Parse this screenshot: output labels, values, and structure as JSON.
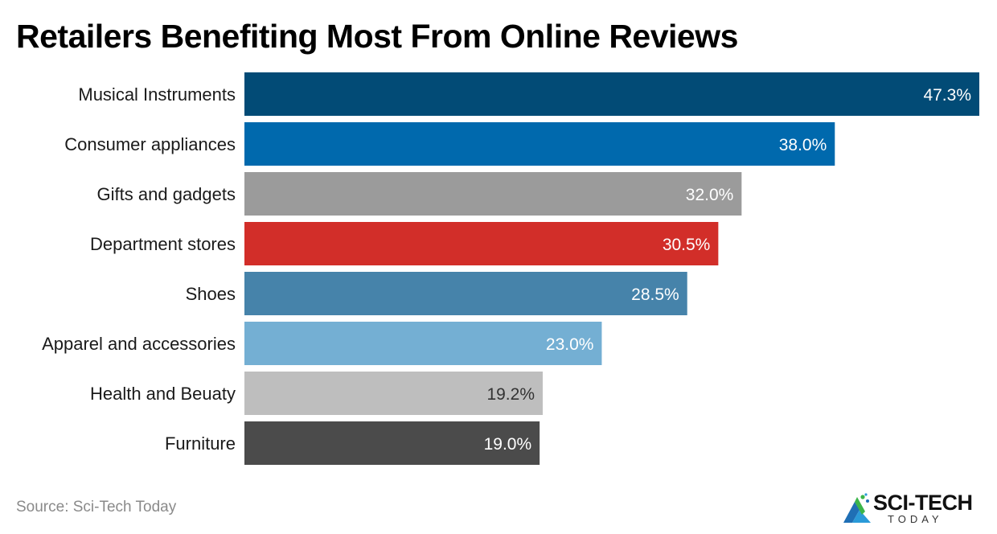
{
  "title": "Retailers Benefiting Most From Online Reviews",
  "source": "Source: Sci-Tech Today",
  "logo": {
    "name_top": "SCI-TECH",
    "name_bottom": "TODAY",
    "icon": "logo-mark-icon"
  },
  "chart_data": {
    "type": "bar",
    "orientation": "horizontal",
    "title": "Retailers Benefiting Most From Online Reviews",
    "xlabel": "",
    "ylabel": "",
    "xlim": [
      0,
      47.3
    ],
    "grid": false,
    "legend": "none",
    "categories": [
      "Musical Instruments",
      "Consumer appliances",
      "Gifts and gadgets",
      "Department stores",
      "Shoes",
      "Apparel and accessories",
      "Health and Beuaty",
      "Furniture"
    ],
    "values": [
      47.3,
      38.0,
      32.0,
      30.5,
      28.5,
      23.0,
      19.2,
      19.0
    ],
    "value_labels": [
      "47.3%",
      "38.0%",
      "32.0%",
      "30.5%",
      "28.5%",
      "23.0%",
      "19.2%",
      "19.0%"
    ],
    "colors": [
      "#024B76",
      "#0069AD",
      "#9B9B9B",
      "#D22E29",
      "#4683AA",
      "#74AFD3",
      "#BEBEBE",
      "#4B4B4B"
    ],
    "value_label_colors": [
      "#ffffff",
      "#ffffff",
      "#ffffff",
      "#ffffff",
      "#ffffff",
      "#ffffff",
      "#333333",
      "#ffffff"
    ]
  }
}
